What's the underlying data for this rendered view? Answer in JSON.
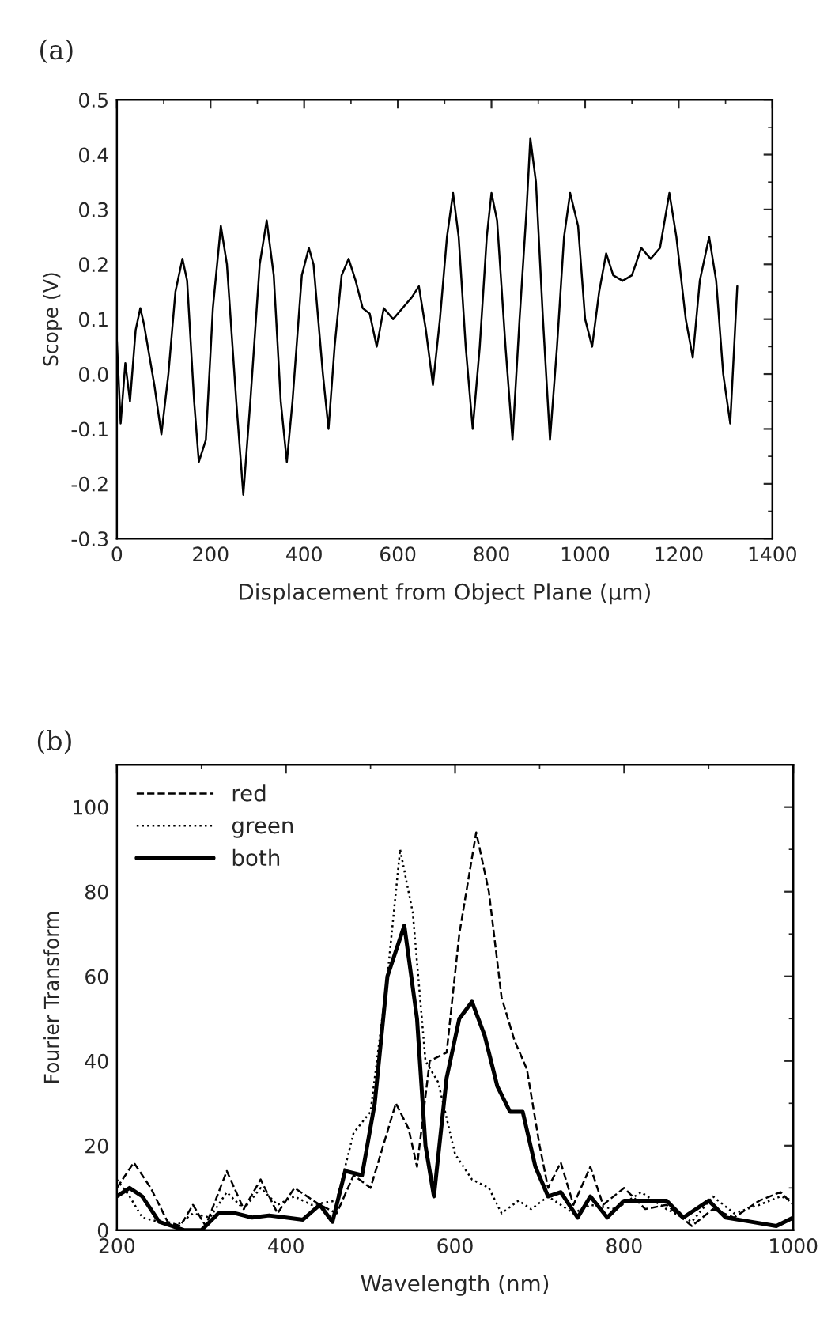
{
  "chart_data": [
    {
      "type": "line",
      "xlabel": "Displacement from Object Plane (µm)",
      "ylabel": "Scope (V)",
      "annotations": [
        "(a)"
      ],
      "xlim": [
        0,
        1400
      ],
      "ylim": [
        -0.3,
        0.5
      ],
      "xticks": [
        0,
        200,
        400,
        600,
        800,
        1000,
        1200,
        1400
      ],
      "yticks": [
        {
          "value": -0.3,
          "label": "-0.3"
        },
        {
          "value": -0.2,
          "label": "-0.2"
        },
        {
          "value": -0.1,
          "label": "-0.1"
        },
        {
          "value": 0.0,
          "label": "0.0"
        },
        0.1,
        0.2,
        0.3,
        0.4,
        0.5
      ],
      "grid": false,
      "legend": false,
      "line_style": "solid",
      "marker": "none",
      "series": [
        {
          "color": "#000000",
          "x": [
            0,
            8,
            18,
            28,
            40,
            50,
            58,
            70,
            80,
            95,
            110,
            125,
            140,
            150,
            165,
            175,
            190,
            205,
            222,
            235,
            255,
            270,
            285,
            305,
            320,
            335,
            350,
            363,
            375,
            395,
            410,
            420,
            440,
            452,
            465,
            480,
            495,
            510,
            525,
            540,
            555,
            570,
            590,
            610,
            630,
            645,
            660,
            675,
            690,
            705,
            718,
            730,
            745,
            760,
            775,
            790,
            800,
            812,
            830,
            845,
            860,
            875,
            883,
            895,
            910,
            925,
            940,
            955,
            968,
            985,
            1000,
            1015,
            1030,
            1045,
            1060,
            1080,
            1100,
            1120,
            1140,
            1160,
            1180,
            1195,
            1215,
            1230,
            1245,
            1265,
            1280,
            1295,
            1310,
            1325
          ],
          "values": [
            0.06,
            -0.09,
            0.02,
            -0.05,
            0.08,
            0.12,
            0.09,
            0.03,
            -0.02,
            -0.11,
            0.0,
            0.15,
            0.21,
            0.17,
            -0.05,
            -0.16,
            -0.12,
            0.12,
            0.27,
            0.2,
            -0.05,
            -0.22,
            -0.05,
            0.2,
            0.28,
            0.18,
            -0.05,
            -0.16,
            -0.05,
            0.18,
            0.23,
            0.2,
            0.0,
            -0.1,
            0.05,
            0.18,
            0.21,
            0.17,
            0.12,
            0.11,
            0.05,
            0.12,
            0.1,
            0.12,
            0.14,
            0.16,
            0.08,
            -0.02,
            0.1,
            0.25,
            0.33,
            0.25,
            0.05,
            -0.1,
            0.05,
            0.25,
            0.33,
            0.28,
            0.05,
            -0.12,
            0.1,
            0.3,
            0.43,
            0.35,
            0.1,
            -0.12,
            0.05,
            0.25,
            0.33,
            0.27,
            0.1,
            0.05,
            0.15,
            0.22,
            0.18,
            0.17,
            0.18,
            0.23,
            0.21,
            0.23,
            0.33,
            0.25,
            0.1,
            0.03,
            0.17,
            0.25,
            0.17,
            0.0,
            -0.09,
            0.16
          ]
        }
      ]
    },
    {
      "type": "line",
      "xlabel": "Wavelength (nm)",
      "ylabel": "Fourier Transform",
      "annotations": [
        "(b)"
      ],
      "xlim": [
        200,
        1000
      ],
      "ylim": [
        0,
        110
      ],
      "xticks": [
        200,
        400,
        600,
        800,
        1000
      ],
      "yticks": [
        0,
        20,
        40,
        60,
        80,
        100
      ],
      "grid": false,
      "legend": "top left",
      "marker": "none",
      "series": [
        {
          "name": "red",
          "color": "#000000",
          "line_style": "dashed",
          "x": [
            200,
            220,
            240,
            260,
            275,
            290,
            305,
            330,
            350,
            370,
            390,
            410,
            440,
            460,
            480,
            500,
            515,
            530,
            545,
            555,
            570,
            590,
            605,
            625,
            640,
            655,
            670,
            685,
            700,
            710,
            725,
            740,
            760,
            775,
            800,
            825,
            850,
            880,
            905,
            930,
            960,
            985,
            1000
          ],
          "values": [
            10,
            16,
            10,
            2,
            1,
            6,
            1,
            14,
            5,
            12,
            4,
            10,
            6,
            4,
            13,
            10,
            20,
            30,
            24,
            15,
            40,
            42,
            70,
            94,
            80,
            55,
            45,
            38,
            20,
            10,
            16,
            6,
            15,
            6,
            10,
            5,
            6,
            1,
            5,
            3,
            7,
            9,
            6
          ]
        },
        {
          "name": "green",
          "color": "#000000",
          "line_style": "dotted",
          "x": [
            200,
            215,
            230,
            250,
            270,
            290,
            310,
            330,
            350,
            370,
            390,
            410,
            430,
            460,
            480,
            500,
            520,
            535,
            550,
            565,
            580,
            600,
            620,
            640,
            655,
            675,
            690,
            710,
            740,
            760,
            790,
            820,
            850,
            880,
            905,
            930,
            960,
            985,
            1000
          ],
          "values": [
            12,
            8,
            3,
            2,
            1,
            4,
            3,
            9,
            5,
            10,
            6,
            8,
            6,
            7,
            23,
            28,
            60,
            90,
            75,
            40,
            35,
            18,
            12,
            10,
            4,
            7,
            5,
            8,
            4,
            6,
            5,
            9,
            5,
            2,
            8,
            4,
            6,
            8,
            7
          ]
        },
        {
          "name": "both",
          "color": "#000000",
          "line_style": "solid",
          "x": [
            200,
            215,
            230,
            250,
            265,
            280,
            300,
            320,
            340,
            360,
            380,
            400,
            420,
            440,
            455,
            470,
            490,
            505,
            520,
            540,
            555,
            565,
            575,
            590,
            605,
            620,
            635,
            650,
            665,
            680,
            695,
            710,
            725,
            745,
            760,
            780,
            800,
            830,
            850,
            870,
            900,
            920,
            950,
            980,
            1000
          ],
          "values": [
            8,
            10,
            8,
            2,
            1,
            0,
            0,
            4,
            4,
            3,
            3.5,
            3,
            2.5,
            6,
            2,
            14,
            13,
            30,
            60,
            72,
            50,
            20,
            8,
            36,
            50,
            54,
            46,
            34,
            28,
            28,
            15,
            8,
            9,
            3,
            8,
            3,
            7,
            7,
            7,
            3,
            7,
            3,
            2,
            1,
            3
          ]
        }
      ]
    }
  ]
}
